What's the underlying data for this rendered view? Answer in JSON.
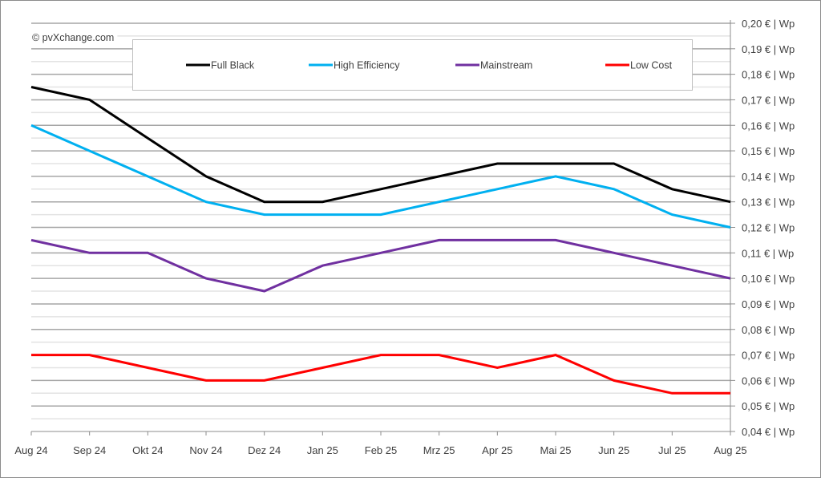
{
  "chart_data": {
    "type": "line",
    "title": "",
    "xlabel": "",
    "ylabel": "",
    "copyright": "© pvXchange.com",
    "categories": [
      "Aug 24",
      "Sep 24",
      "Okt 24",
      "Nov 24",
      "Dez 24",
      "Jan 25",
      "Feb 25",
      "Mrz 25",
      "Apr 25",
      "Mai 25",
      "Jun 25",
      "Jul 25",
      "Aug 25"
    ],
    "ylim": [
      0.04,
      0.2
    ],
    "yticks": [
      0.2,
      0.19,
      0.18,
      0.17,
      0.16,
      0.15,
      0.14,
      0.13,
      0.12,
      0.11,
      0.1,
      0.09,
      0.08,
      0.07,
      0.06,
      0.05,
      0.04
    ],
    "ytick_labels": [
      "0,20 € | Wp",
      "0,19 € | Wp",
      "0,18 € | Wp",
      "0,17 € | Wp",
      "0,16 € | Wp",
      "0,15 € | Wp",
      "0,14 € | Wp",
      "0,13 € | Wp",
      "0,12 € | Wp",
      "0,11 € | Wp",
      "0,10 € | Wp",
      "0,09 € | Wp",
      "0,08 € | Wp",
      "0,07 € | Wp",
      "0,06 € | Wp",
      "0,05 € | Wp",
      "0,04 € | Wp"
    ],
    "y_axis_position": "right",
    "grid": true,
    "minor_grid": true,
    "legend_position": "top",
    "series": [
      {
        "name": "Full Black",
        "color": "#000000",
        "values": [
          0.175,
          0.17,
          0.155,
          0.14,
          0.13,
          0.13,
          0.135,
          0.14,
          0.145,
          0.145,
          0.145,
          0.135,
          0.13
        ]
      },
      {
        "name": "High Efficiency",
        "color": "#00b0f0",
        "values": [
          0.16,
          0.15,
          0.14,
          0.13,
          0.125,
          0.125,
          0.125,
          0.13,
          0.135,
          0.14,
          0.135,
          0.125,
          0.12
        ]
      },
      {
        "name": "Mainstream",
        "color": "#7030a0",
        "values": [
          0.115,
          0.11,
          0.11,
          0.1,
          0.095,
          0.105,
          0.11,
          0.115,
          0.115,
          0.115,
          0.11,
          0.105,
          0.1
        ]
      },
      {
        "name": "Low Cost",
        "color": "#ff0000",
        "values": [
          0.07,
          0.07,
          0.065,
          0.06,
          0.06,
          0.065,
          0.07,
          0.07,
          0.065,
          0.07,
          0.06,
          0.055,
          0.055
        ]
      }
    ]
  }
}
